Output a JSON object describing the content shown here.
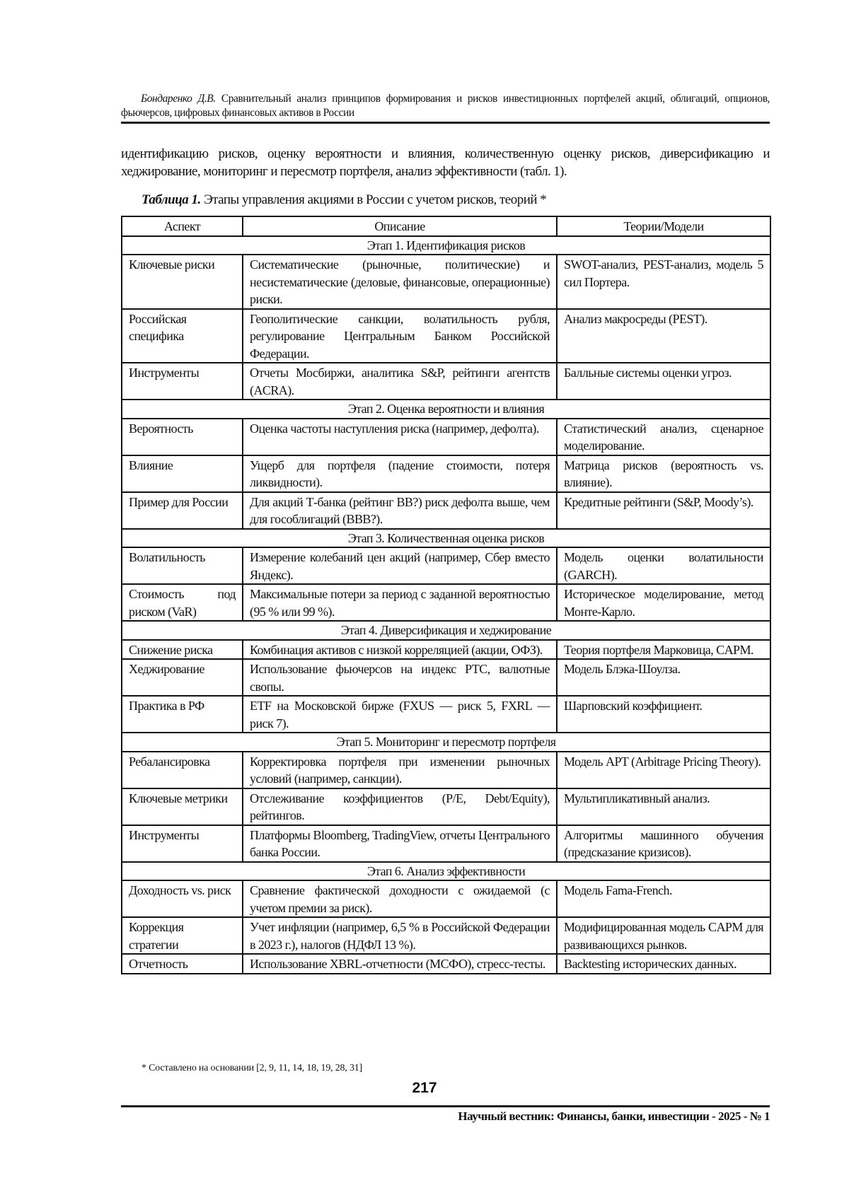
{
  "running_head": {
    "author": "Бондаренко Д.В.",
    "title": "Сравнительный анализ принципов формирования и рисков инвестиционных портфелей акций, облигаций, опционов, фьючерсов, цифровых финансовых активов в России"
  },
  "body_text": "идентификацию рисков, оценку вероятности и влияния, количественную оценку рисков, диверсификацию и хеджирование, мониторинг и пересмотр портфеля, анализ эффективности (табл. 1).",
  "table": {
    "caption_label": "Таблица 1.",
    "caption_text": "Этапы управления акциями в России с учетом рисков, теорий *",
    "headers": [
      "Аспект",
      "Описание",
      "Теории/Модели"
    ],
    "stages": [
      {
        "title": "Этап 1. Идентификация рисков",
        "rows": [
          [
            "Ключевые риски",
            "Систематические (рыночные, политические) и несистематические (деловые, финансовые, операционные) риски.",
            "SWOT-анализ, PEST-анализ, модель 5 сил Портера."
          ],
          [
            "Российская специфика",
            "Геополитические санкции, волатильность рубля, регулирование Центральным Банком Российской Федерации.",
            "Анализ макросреды (PEST)."
          ],
          [
            "Инструменты",
            "Отчеты Мосбиржи, аналитика S&P, рейтинги агентств (ACRA).",
            "Балльные системы оценки угроз."
          ]
        ]
      },
      {
        "title": "Этап 2. Оценка вероятности и влияния",
        "rows": [
          [
            "Вероятность",
            "Оценка частоты наступления риска (например, дефолта).",
            "Статистический анализ, сценарное моделирование."
          ],
          [
            "Влияние",
            "Ущерб для портфеля (падение стоимости, потеря ликвидности).",
            "Матрица рисков (вероятность vs. влияние)."
          ],
          [
            "Пример для России",
            "Для акций Т-банка (рейтинг BB?) риск дефолта выше, чем для гособлигаций (BBB?).",
            "Кредитные рейтинги (S&P, Moody’s)."
          ]
        ]
      },
      {
        "title": "Этап 3. Количественная оценка рисков",
        "rows": [
          [
            "Волатильность",
            "Измерение колебаний цен акций (например, Сбер вместо Яндекс).",
            "Модель оценки волатильности (GARCH)."
          ],
          [
            "Стоимость под риском (VaR)",
            "Максимальные потери за период с заданной вероятностью (95 % или 99 %).",
            "Историческое моделирование, метод Монте-Карло."
          ]
        ]
      },
      {
        "title": "Этап 4. Диверсификация и хеджирование",
        "rows": [
          [
            "Снижение риска",
            "Комбинация активов с низкой корреляцией (акции, ОФЗ).",
            "Теория портфеля Марковица, CAPM."
          ],
          [
            "Хеджирование",
            "Использование фьючерсов на индекс РТС, валютные свопы.",
            "Модель Блэка-Шоулза."
          ],
          [
            "Практика в РФ",
            "ETF на Московской бирже (FXUS — риск 5, FXRL — риск 7).",
            "Шарповский коэффициент."
          ]
        ]
      },
      {
        "title": "Этап 5. Мониторинг и пересмотр портфеля",
        "rows": [
          [
            "Ребалансировка",
            "Корректировка портфеля при изменении рыночных условий (например, санкции).",
            "Модель APT (Arbitrage Pricing Theory)."
          ],
          [
            "Ключевые метрики",
            "Отслеживание коэффициентов (P/E, Debt/Equity), рейтингов.",
            "Мультипликативный анализ."
          ],
          [
            "Инструменты",
            "Платформы Bloomberg, TradingView, отчеты Центрального банка России.",
            "Алгоритмы машинного обучения (предсказание кризисов)."
          ]
        ]
      },
      {
        "title": "Этап 6. Анализ эффективности",
        "rows": [
          [
            "Доходность vs. риск",
            "Сравнение фактической доходности с ожидаемой (с учетом премии за риск).",
            "Модель Fama-French."
          ],
          [
            "Коррекция стратегии",
            "Учет инфляции (например, 6,5 % в Российской Федерации в 2023 г.), налогов (НДФЛ 13 %).",
            "Модифицированная модель CAPM для развивающихся рынков."
          ],
          [
            "Отчетность",
            "Использование XBRL-отчетности (МСФО), стресс-тесты.",
            "Backtesting исторических данных."
          ]
        ]
      }
    ],
    "footnote": "* Составлено на основании [2, 9, 11, 14, 18, 19, 28, 31]"
  },
  "page_number": "217",
  "journal": "Научный вестник: Финансы, банки, инвестиции - 2025 - № 1"
}
